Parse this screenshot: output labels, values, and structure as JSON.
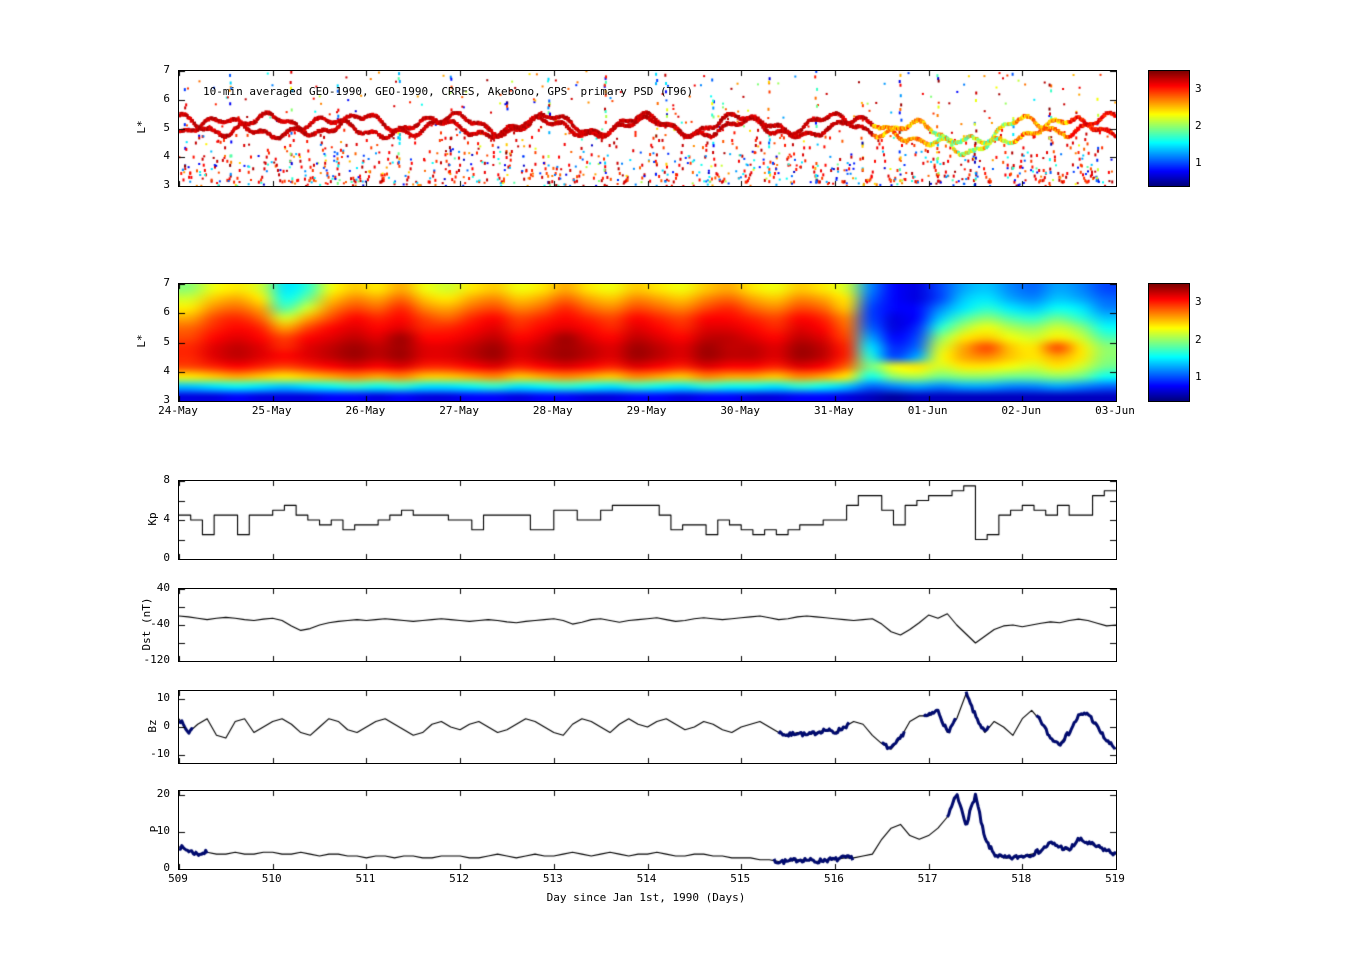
{
  "xaxis": {
    "label": "Day since Jan 1st, 1990 (Days)",
    "ticks": [
      509,
      510,
      511,
      512,
      513,
      514,
      515,
      516,
      517,
      518,
      519
    ],
    "lim": [
      509,
      519
    ]
  },
  "colors": {
    "line": "#000000",
    "bold": "#000a6e",
    "frame": "#000000",
    "background": "#ffffff"
  },
  "chart_data": [
    {
      "id": "psd_scatter",
      "type": "scatter",
      "title": "10-min averaged GEO-1990, GEO-1990, CRRES, Akebono, GPS  primary PSD (T96)",
      "ylabel": "L*",
      "ylim": [
        3,
        7
      ],
      "yticks": [
        3,
        4,
        5,
        6,
        7
      ],
      "xlim_days": [
        0,
        10
      ],
      "xticks_days": [
        0,
        1,
        2,
        3,
        4,
        5,
        6,
        7,
        8,
        9,
        10
      ],
      "colorbar": {
        "ticks": [
          1,
          2,
          3
        ],
        "vmin": 0.4,
        "vmax": 3.5
      },
      "seed": 1990,
      "streak_times": [
        0.07,
        0.55,
        1.2,
        1.7,
        2.35,
        2.9,
        3.5,
        3.95,
        4.55,
        5.1,
        5.2,
        5.7,
        6.3,
        6.8,
        7.3,
        7.7,
        8.1,
        8.5,
        8.9,
        9.3,
        9.8
      ]
    },
    {
      "id": "psd_map",
      "type": "heatmap",
      "ylabel": "L*",
      "ylim": [
        3,
        7
      ],
      "yticks": [
        3,
        4,
        5,
        6,
        7
      ],
      "xlim_days": [
        0,
        10
      ],
      "xticks_days": [
        0,
        1,
        2,
        3,
        4,
        5,
        6,
        7,
        8,
        9,
        10
      ],
      "xticklabels": [
        "24-May",
        "25-May",
        "26-May",
        "27-May",
        "28-May",
        "29-May",
        "30-May",
        "31-May",
        "01-Jun",
        "02-Jun",
        "03-Jun"
      ],
      "colorbar": {
        "ticks": [
          1,
          2,
          3
        ],
        "vmin": 0.4,
        "vmax": 3.5
      },
      "grid_rows_top_to_bottom": [
        [
          2.0,
          2.3,
          2.4,
          2.2,
          1.5,
          1.7,
          2.3,
          2.5,
          2.4,
          2.6,
          2.3,
          2.2,
          2.4,
          2.5,
          2.3,
          2.4,
          2.6,
          2.4,
          2.3,
          2.5,
          2.4,
          2.3,
          2.5,
          2.6,
          2.4,
          2.3,
          2.5,
          2.4,
          2.2,
          1.2,
          0.8,
          0.7,
          1.0,
          1.3,
          1.4,
          1.2,
          1.1,
          1.3,
          1.2,
          1.0
        ],
        [
          2.2,
          2.5,
          2.6,
          2.4,
          1.6,
          1.9,
          2.5,
          2.7,
          2.6,
          2.8,
          2.5,
          2.4,
          2.6,
          2.7,
          2.5,
          2.6,
          2.8,
          2.6,
          2.5,
          2.7,
          2.6,
          2.5,
          2.7,
          2.8,
          2.6,
          2.5,
          2.7,
          2.6,
          2.4,
          1.1,
          0.8,
          0.7,
          1.0,
          1.4,
          1.5,
          1.3,
          1.2,
          1.4,
          1.3,
          1.1
        ],
        [
          2.4,
          2.7,
          2.8,
          2.6,
          1.8,
          2.2,
          2.7,
          2.9,
          2.8,
          3.0,
          2.7,
          2.6,
          2.8,
          2.9,
          2.7,
          2.8,
          3.0,
          2.8,
          2.7,
          2.9,
          2.8,
          2.7,
          2.9,
          3.0,
          2.8,
          2.7,
          2.9,
          2.8,
          2.5,
          1.0,
          0.8,
          0.8,
          1.2,
          1.5,
          1.7,
          1.5,
          1.4,
          1.6,
          1.5,
          1.2
        ],
        [
          2.6,
          2.9,
          3.0,
          2.8,
          2.2,
          2.6,
          2.9,
          3.1,
          3.0,
          3.1,
          2.9,
          2.8,
          3.0,
          3.1,
          2.9,
          3.0,
          3.1,
          3.0,
          2.9,
          3.1,
          3.0,
          2.9,
          3.1,
          3.1,
          3.0,
          2.9,
          3.1,
          3.0,
          2.7,
          1.0,
          0.7,
          0.8,
          1.4,
          1.8,
          2.0,
          1.8,
          1.7,
          1.9,
          1.7,
          1.4
        ],
        [
          2.8,
          3.0,
          3.1,
          3.0,
          2.6,
          2.9,
          3.1,
          3.2,
          3.1,
          3.2,
          3.0,
          3.0,
          3.1,
          3.2,
          3.0,
          3.1,
          3.2,
          3.1,
          3.0,
          3.2,
          3.1,
          3.0,
          3.2,
          3.2,
          3.1,
          3.0,
          3.2,
          3.1,
          2.8,
          1.1,
          0.7,
          0.9,
          1.7,
          2.1,
          2.3,
          2.1,
          2.0,
          2.2,
          2.0,
          1.6
        ],
        [
          2.9,
          3.1,
          3.2,
          3.1,
          2.9,
          3.1,
          3.2,
          3.3,
          3.2,
          3.4,
          3.1,
          3.1,
          3.2,
          3.3,
          3.1,
          3.2,
          3.4,
          3.2,
          3.1,
          3.3,
          3.2,
          3.1,
          3.3,
          3.3,
          3.2,
          3.1,
          3.3,
          3.2,
          2.9,
          1.3,
          0.8,
          1.0,
          2.0,
          2.4,
          2.5,
          2.3,
          2.2,
          2.4,
          2.2,
          1.8
        ],
        [
          3.0,
          3.2,
          3.3,
          3.2,
          3.0,
          3.2,
          3.3,
          3.4,
          3.3,
          3.4,
          3.2,
          3.2,
          3.3,
          3.4,
          3.2,
          3.3,
          3.4,
          3.3,
          3.2,
          3.4,
          3.3,
          3.2,
          3.4,
          3.3,
          3.3,
          3.2,
          3.4,
          3.3,
          3.0,
          1.5,
          0.9,
          1.1,
          2.2,
          2.6,
          2.9,
          2.5,
          2.4,
          2.9,
          2.4,
          2.0
        ],
        [
          3.0,
          3.2,
          3.3,
          3.2,
          3.1,
          3.2,
          3.3,
          3.4,
          3.3,
          3.4,
          3.2,
          3.2,
          3.3,
          3.4,
          3.2,
          3.3,
          3.4,
          3.3,
          3.2,
          3.4,
          3.3,
          3.2,
          3.4,
          3.3,
          3.3,
          3.2,
          3.4,
          3.3,
          3.0,
          1.7,
          1.0,
          1.3,
          2.3,
          2.6,
          2.7,
          2.5,
          2.4,
          2.6,
          2.4,
          2.0
        ],
        [
          2.9,
          3.0,
          3.1,
          3.0,
          2.9,
          3.0,
          3.1,
          3.2,
          3.1,
          3.2,
          3.0,
          3.0,
          3.1,
          3.2,
          3.0,
          3.1,
          3.2,
          3.1,
          3.0,
          3.2,
          3.1,
          3.0,
          3.2,
          3.1,
          3.1,
          3.0,
          3.2,
          3.1,
          2.8,
          1.9,
          2.3,
          2.4,
          2.2,
          2.4,
          2.4,
          2.3,
          2.2,
          2.4,
          2.2,
          1.9
        ],
        [
          2.4,
          2.5,
          2.6,
          2.5,
          2.4,
          2.5,
          2.6,
          2.7,
          2.6,
          2.7,
          2.5,
          2.5,
          2.6,
          2.7,
          2.5,
          2.6,
          2.7,
          2.6,
          2.5,
          2.7,
          2.6,
          2.5,
          2.7,
          2.6,
          2.6,
          2.5,
          2.7,
          2.6,
          2.4,
          1.6,
          2.0,
          2.1,
          1.9,
          2.0,
          2.0,
          1.9,
          1.9,
          2.0,
          1.9,
          1.6
        ],
        [
          1.4,
          1.5,
          1.6,
          1.5,
          1.4,
          1.5,
          1.6,
          1.7,
          1.6,
          1.7,
          1.5,
          1.5,
          1.6,
          1.7,
          1.5,
          1.6,
          1.7,
          1.6,
          1.5,
          1.7,
          1.6,
          1.5,
          1.7,
          1.6,
          1.6,
          1.5,
          1.7,
          1.6,
          1.4,
          1.1,
          1.2,
          1.3,
          1.2,
          1.3,
          1.3,
          1.2,
          1.2,
          1.3,
          1.2,
          1.1
        ],
        [
          0.7,
          0.7,
          0.8,
          0.7,
          0.7,
          0.7,
          0.8,
          0.8,
          0.7,
          0.8,
          0.7,
          0.7,
          0.8,
          0.8,
          0.7,
          0.8,
          0.8,
          0.7,
          0.7,
          0.8,
          0.8,
          0.7,
          0.8,
          0.8,
          0.7,
          0.7,
          0.8,
          0.8,
          0.7,
          0.6,
          0.5,
          0.6,
          0.6,
          0.6,
          0.6,
          0.6,
          0.6,
          0.6,
          0.6,
          0.6
        ]
      ]
    },
    {
      "id": "kp",
      "type": "line-step",
      "ylabel": "Kp",
      "ylim": [
        0,
        8
      ],
      "yticks": [
        0,
        4,
        8
      ],
      "minor_ticks": [
        2,
        6
      ],
      "x_start": 509,
      "x_step": 0.125,
      "values": [
        4.5,
        4,
        2.5,
        4.5,
        4.5,
        2.5,
        4.5,
        4.5,
        5,
        5.5,
        4.5,
        4,
        3.5,
        4,
        3,
        3.5,
        3.5,
        4,
        4.5,
        5,
        4.5,
        4.5,
        4.5,
        4,
        4,
        3,
        4.5,
        4.5,
        4.5,
        4.5,
        3,
        3,
        5,
        5,
        4,
        4,
        5,
        5.5,
        5.5,
        5.5,
        5.5,
        4.5,
        3,
        3.5,
        3.5,
        2.5,
        4,
        3.5,
        3,
        2.5,
        3,
        2.5,
        3,
        3.5,
        3.5,
        4,
        4,
        5.5,
        6.5,
        6.5,
        5,
        3.5,
        5.5,
        6,
        6.5,
        6.5,
        7,
        7.5,
        2,
        2.5,
        4.5,
        5,
        5.5,
        5,
        4.5,
        5.5,
        4.5,
        4.5,
        6.5,
        7
      ]
    },
    {
      "id": "dst",
      "type": "line",
      "ylabel": "Dst (nT)",
      "ylim": [
        -120,
        40
      ],
      "yticks": [
        40,
        -40,
        -120
      ],
      "minor_ticks": [
        0,
        -80
      ],
      "x_start": 509,
      "x_step": 0.1,
      "values": [
        -20,
        -22,
        -25,
        -28,
        -25,
        -23,
        -25,
        -28,
        -30,
        -27,
        -25,
        -30,
        -42,
        -52,
        -48,
        -40,
        -35,
        -32,
        -30,
        -28,
        -30,
        -28,
        -26,
        -28,
        -30,
        -32,
        -30,
        -28,
        -26,
        -28,
        -30,
        -32,
        -30,
        -28,
        -30,
        -33,
        -35,
        -32,
        -30,
        -28,
        -26,
        -30,
        -38,
        -34,
        -28,
        -26,
        -30,
        -34,
        -30,
        -28,
        -26,
        -24,
        -28,
        -32,
        -30,
        -26,
        -24,
        -26,
        -28,
        -26,
        -24,
        -22,
        -20,
        -24,
        -28,
        -26,
        -22,
        -20,
        -22,
        -24,
        -26,
        -28,
        -30,
        -28,
        -26,
        -38,
        -55,
        -62,
        -50,
        -35,
        -18,
        -25,
        -15,
        -40,
        -60,
        -80,
        -65,
        -50,
        -42,
        -40,
        -44,
        -40,
        -36,
        -33,
        -35,
        -30,
        -27,
        -30,
        -36,
        -42,
        -40
      ]
    },
    {
      "id": "bz",
      "type": "line",
      "ylabel": "Bz",
      "ylim": [
        -13,
        13
      ],
      "yticks": [
        10,
        0,
        -10
      ],
      "minor_ticks": [],
      "x_start": 509,
      "x_step": 0.1,
      "values": [
        3,
        -2,
        1,
        3,
        -3,
        -4,
        2,
        3,
        -2,
        0,
        2,
        3,
        1,
        -2,
        -3,
        0,
        3,
        2,
        -1,
        -2,
        0,
        2,
        3,
        1,
        -1,
        -3,
        -2,
        1,
        2,
        0,
        -1,
        1,
        2,
        0,
        -2,
        -1,
        1,
        3,
        2,
        0,
        -2,
        -3,
        1,
        3,
        2,
        0,
        -2,
        1,
        3,
        1,
        0,
        2,
        3,
        1,
        -1,
        0,
        2,
        1,
        -1,
        -2,
        0,
        1,
        2,
        0,
        -2,
        -3,
        -2,
        -3,
        -2,
        -1,
        -2,
        0,
        2,
        1,
        -3,
        -6,
        -8,
        -4,
        2,
        4,
        4,
        6,
        -2,
        3,
        12,
        4,
        -2,
        2,
        0,
        -3,
        3,
        6,
        2,
        -4,
        -6,
        -2,
        4,
        5,
        0,
        -5,
        -8
      ],
      "bold_ranges": [
        [
          509.0,
          509.15
        ],
        [
          515.4,
          516.15
        ],
        [
          516.5,
          516.75
        ],
        [
          516.95,
          517.3
        ],
        [
          517.4,
          517.65
        ],
        [
          518.15,
          519.0
        ]
      ]
    },
    {
      "id": "p",
      "type": "line",
      "ylabel": "P",
      "ylim": [
        0,
        21
      ],
      "yticks": [
        0,
        10,
        20
      ],
      "minor_ticks": [],
      "x_start": 509,
      "x_step": 0.1,
      "values": [
        6,
        5,
        4,
        4.5,
        4,
        4,
        4.5,
        4,
        4,
        4.5,
        4.5,
        4,
        4,
        4.5,
        4,
        3.5,
        4,
        4,
        3.5,
        3.5,
        3,
        3.5,
        3.5,
        3,
        3.5,
        3.5,
        3,
        3,
        3.5,
        3.5,
        3.5,
        3,
        3,
        3.5,
        4,
        3.5,
        3,
        3.5,
        4,
        3.5,
        3.5,
        4,
        4.5,
        4,
        3.5,
        4,
        4.5,
        4,
        3.5,
        4,
        4,
        4.5,
        4,
        3.5,
        3.5,
        4,
        4,
        3.5,
        3.5,
        3,
        3,
        3,
        2.5,
        2.5,
        2,
        2,
        2.5,
        2.5,
        2,
        2.5,
        2.5,
        3,
        3,
        3.5,
        4,
        8,
        11,
        12,
        9,
        8,
        9,
        11,
        14,
        20,
        12,
        20,
        8,
        4,
        3,
        3,
        3.5,
        4,
        5,
        7,
        6,
        5,
        8,
        7,
        6,
        5,
        4
      ],
      "bold_ranges": [
        [
          509.0,
          509.3
        ],
        [
          515.35,
          516.2
        ],
        [
          517.2,
          519.0
        ]
      ]
    }
  ]
}
